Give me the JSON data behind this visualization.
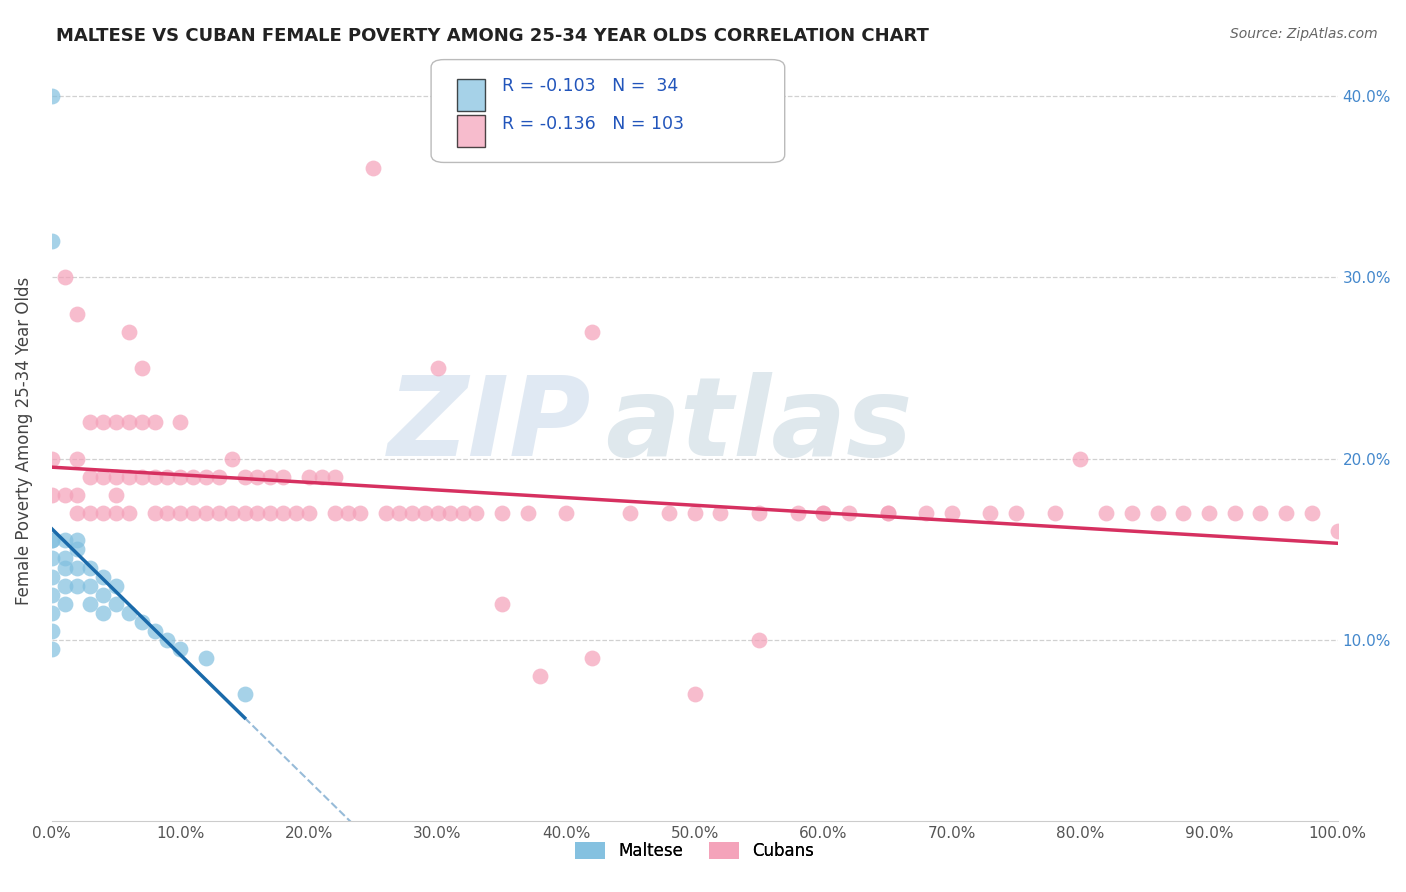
{
  "title": "MALTESE VS CUBAN FEMALE POVERTY AMONG 25-34 YEAR OLDS CORRELATION CHART",
  "source": "Source: ZipAtlas.com",
  "ylabel": "Female Poverty Among 25-34 Year Olds",
  "xlim": [
    0.0,
    1.0
  ],
  "ylim": [
    0.0,
    0.42
  ],
  "xtick_labels": [
    "0.0%",
    "10.0%",
    "20.0%",
    "30.0%",
    "40.0%",
    "50.0%",
    "60.0%",
    "70.0%",
    "80.0%",
    "90.0%",
    "100.0%"
  ],
  "ytick_labels_right": [
    "",
    "10.0%",
    "20.0%",
    "30.0%",
    "40.0%"
  ],
  "yticks": [
    0.0,
    0.1,
    0.2,
    0.3,
    0.4
  ],
  "maltese_R": -0.103,
  "maltese_N": 34,
  "cuban_R": -0.136,
  "cuban_N": 103,
  "maltese_color": "#80bfdf",
  "cuban_color": "#f4a0b8",
  "maltese_line_color": "#1a6aaa",
  "cuban_line_color": "#d63060",
  "background_color": "#ffffff",
  "grid_color": "#cccccc",
  "legend_R_N_color": "#2255bb",
  "maltese_x": [
    0.0,
    0.0,
    0.0,
    0.0,
    0.0,
    0.0,
    0.0,
    0.0,
    0.0,
    0.0,
    0.01,
    0.01,
    0.01,
    0.01,
    0.01,
    0.02,
    0.02,
    0.02,
    0.02,
    0.03,
    0.03,
    0.03,
    0.04,
    0.04,
    0.04,
    0.05,
    0.05,
    0.06,
    0.07,
    0.08,
    0.09,
    0.1,
    0.12,
    0.15
  ],
  "maltese_y": [
    0.4,
    0.32,
    0.155,
    0.155,
    0.145,
    0.135,
    0.125,
    0.115,
    0.105,
    0.095,
    0.155,
    0.145,
    0.14,
    0.13,
    0.12,
    0.155,
    0.15,
    0.14,
    0.13,
    0.14,
    0.13,
    0.12,
    0.135,
    0.125,
    0.115,
    0.13,
    0.12,
    0.115,
    0.11,
    0.105,
    0.1,
    0.095,
    0.09,
    0.07
  ],
  "cuban_x": [
    0.0,
    0.0,
    0.01,
    0.01,
    0.02,
    0.02,
    0.02,
    0.02,
    0.03,
    0.03,
    0.03,
    0.04,
    0.04,
    0.04,
    0.05,
    0.05,
    0.05,
    0.05,
    0.06,
    0.06,
    0.06,
    0.06,
    0.07,
    0.07,
    0.07,
    0.08,
    0.08,
    0.08,
    0.09,
    0.09,
    0.1,
    0.1,
    0.1,
    0.11,
    0.11,
    0.12,
    0.12,
    0.13,
    0.13,
    0.14,
    0.14,
    0.15,
    0.15,
    0.16,
    0.16,
    0.17,
    0.17,
    0.18,
    0.18,
    0.19,
    0.2,
    0.2,
    0.21,
    0.22,
    0.22,
    0.23,
    0.24,
    0.25,
    0.26,
    0.27,
    0.28,
    0.29,
    0.3,
    0.31,
    0.32,
    0.33,
    0.35,
    0.37,
    0.4,
    0.42,
    0.45,
    0.48,
    0.5,
    0.52,
    0.55,
    0.58,
    0.6,
    0.62,
    0.65,
    0.68,
    0.7,
    0.73,
    0.75,
    0.78,
    0.8,
    0.82,
    0.84,
    0.86,
    0.88,
    0.9,
    0.92,
    0.94,
    0.96,
    0.98,
    1.0,
    0.38,
    0.42,
    0.5,
    0.3,
    0.35,
    0.55,
    0.6,
    0.65
  ],
  "cuban_y": [
    0.2,
    0.18,
    0.3,
    0.18,
    0.28,
    0.2,
    0.18,
    0.17,
    0.22,
    0.19,
    0.17,
    0.22,
    0.19,
    0.17,
    0.22,
    0.19,
    0.18,
    0.17,
    0.27,
    0.22,
    0.19,
    0.17,
    0.25,
    0.22,
    0.19,
    0.22,
    0.19,
    0.17,
    0.19,
    0.17,
    0.22,
    0.19,
    0.17,
    0.19,
    0.17,
    0.19,
    0.17,
    0.19,
    0.17,
    0.2,
    0.17,
    0.19,
    0.17,
    0.19,
    0.17,
    0.19,
    0.17,
    0.19,
    0.17,
    0.17,
    0.19,
    0.17,
    0.19,
    0.19,
    0.17,
    0.17,
    0.17,
    0.36,
    0.17,
    0.17,
    0.17,
    0.17,
    0.17,
    0.17,
    0.17,
    0.17,
    0.17,
    0.17,
    0.17,
    0.27,
    0.17,
    0.17,
    0.17,
    0.17,
    0.1,
    0.17,
    0.17,
    0.17,
    0.17,
    0.17,
    0.17,
    0.17,
    0.17,
    0.17,
    0.2,
    0.17,
    0.17,
    0.17,
    0.17,
    0.17,
    0.17,
    0.17,
    0.17,
    0.17,
    0.16,
    0.08,
    0.09,
    0.07,
    0.25,
    0.12,
    0.17,
    0.17,
    0.17
  ]
}
